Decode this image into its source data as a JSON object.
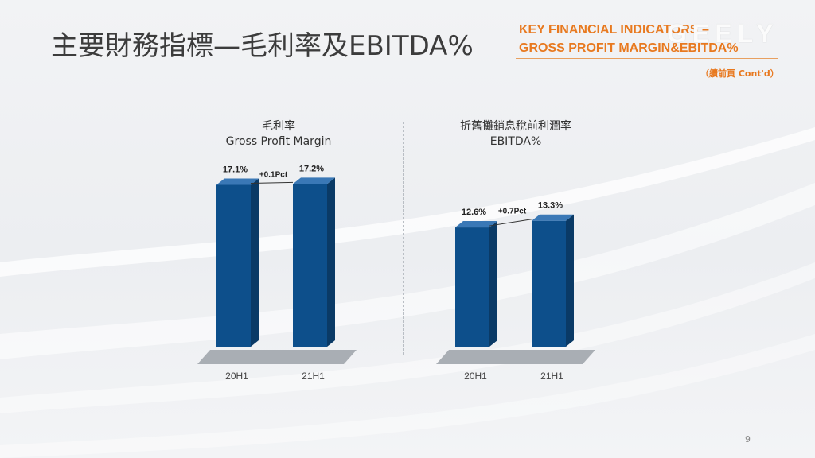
{
  "slide": {
    "title_zh": "主要財務指標—毛利率及EBITDA%",
    "title_en_line1": "KEY FINANCIAL INDICATORS –",
    "title_en_line2": "GROSS PROFIT MARGIN&EBITDA%",
    "brand": "GEELY",
    "continued": "（續前頁 Cont'd）",
    "page_number": "9",
    "accent_color": "#e8791f",
    "bar_color": "#0d4f8b"
  },
  "chart_data": [
    {
      "type": "bar",
      "title": "毛利率",
      "subtitle": "Gross Profit Margin",
      "categories": [
        "20H1",
        "21H1"
      ],
      "values": [
        17.1,
        17.2
      ],
      "value_labels": [
        "17.1%",
        "17.2%"
      ],
      "change_label": "+0.1Pct",
      "unit": "%",
      "grid": false,
      "legend": "none"
    },
    {
      "type": "bar",
      "title": "折舊攤銷息稅前利潤率",
      "subtitle": "EBITDA%",
      "categories": [
        "20H1",
        "21H1"
      ],
      "values": [
        12.6,
        13.3
      ],
      "value_labels": [
        "12.6%",
        "13.3%"
      ],
      "change_label": "+0.7Pct",
      "unit": "%",
      "grid": false,
      "legend": "none"
    }
  ]
}
